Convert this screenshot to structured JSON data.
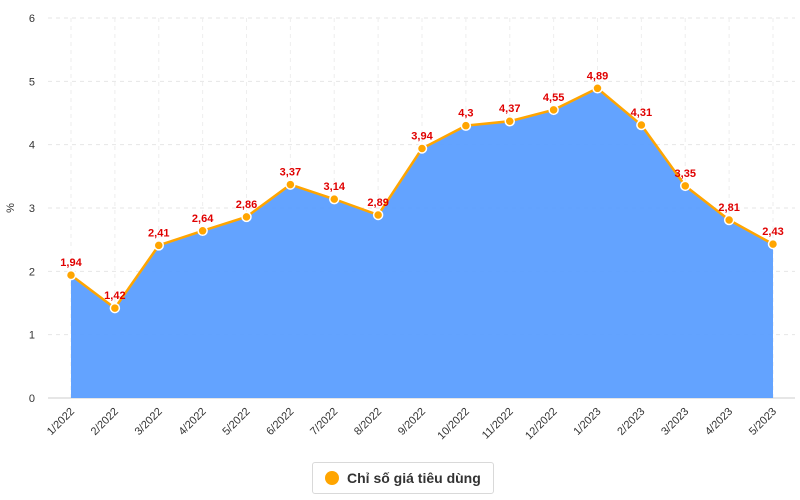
{
  "chart_data": {
    "type": "area",
    "ylabel": "%",
    "ylim": [
      0,
      6
    ],
    "yticks": [
      "0",
      "1",
      "2",
      "3",
      "4",
      "5",
      "6"
    ],
    "categories": [
      "1/2022",
      "2/2022",
      "3/2022",
      "4/2022",
      "5/2022",
      "6/2022",
      "7/2022",
      "8/2022",
      "9/2022",
      "10/2022",
      "11/2022",
      "12/2022",
      "1/2023",
      "2/2023",
      "3/2023",
      "4/2023",
      "5/2023"
    ],
    "series": [
      {
        "name": "Chỉ số giá tiêu dùng",
        "values": [
          1.94,
          1.42,
          2.41,
          2.64,
          2.86,
          3.37,
          3.14,
          2.89,
          3.94,
          4.3,
          4.37,
          4.55,
          4.89,
          4.31,
          3.35,
          2.81,
          2.43
        ],
        "labels": [
          "1,94",
          "1,42",
          "2,41",
          "2,64",
          "2,86",
          "3,37",
          "3,14",
          "2,89",
          "3,94",
          "4,3",
          "4,37",
          "4,55",
          "4,89",
          "4,31",
          "3,35",
          "2,81",
          "2,43"
        ]
      }
    ],
    "grid": true,
    "legend_position": "bottom-center",
    "colors": {
      "area": "#5B9EFF",
      "line": "#FFA500",
      "point": "#FFA500",
      "label": "#E00000"
    }
  },
  "legend": {
    "label": "Chỉ số giá tiêu dùng"
  }
}
